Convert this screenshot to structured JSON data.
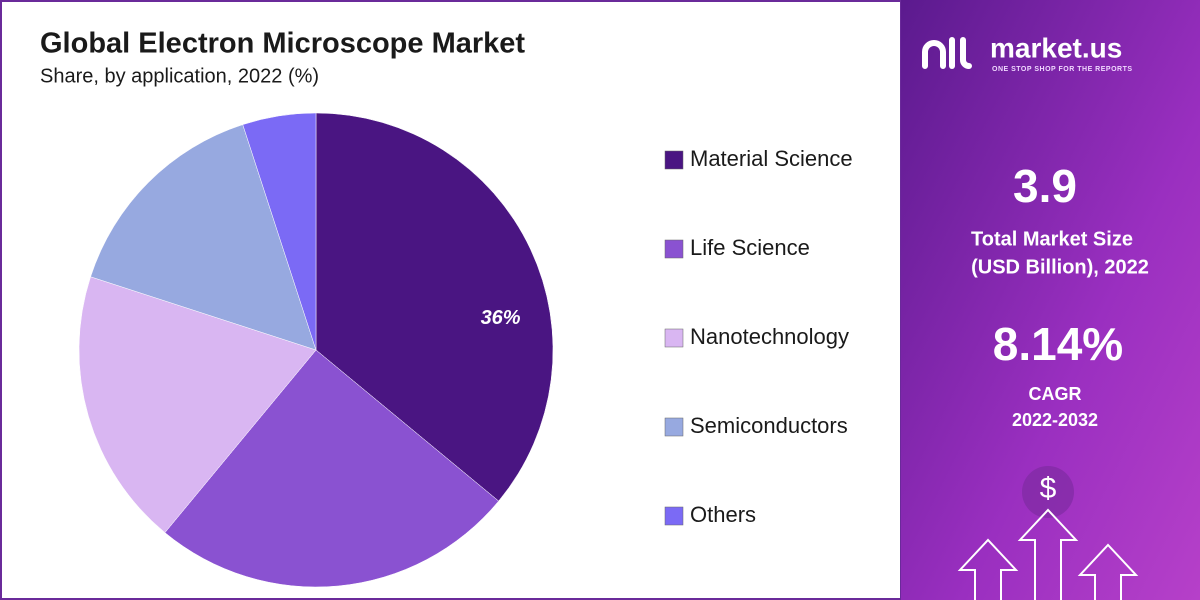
{
  "chart_data": {
    "type": "pie",
    "title": "Global Electron Microscope Market",
    "subtitle": "Share, by application, 2022 (%)",
    "categories": [
      "Material Science",
      "Life Science",
      "Nanotechnology",
      "Semiconductors",
      "Others"
    ],
    "values": [
      36,
      25,
      19,
      15,
      5
    ],
    "value_labels": [
      "36%",
      null,
      null,
      null,
      null
    ],
    "colors": [
      "#4a1582",
      "#8a52d1",
      "#d9b6f2",
      "#97a9e0",
      "#7b6af5"
    ]
  },
  "panel": {
    "brand": "market.us",
    "tagline": "ONE STOP SHOP FOR THE REPORTS",
    "market_size": "3.9",
    "market_size_label": [
      "Total Market Size",
      "(USD Billion), 2022"
    ],
    "cagr": "8.14%",
    "cagr_label": [
      "CAGR",
      "2022-2032"
    ],
    "icon": "$"
  }
}
